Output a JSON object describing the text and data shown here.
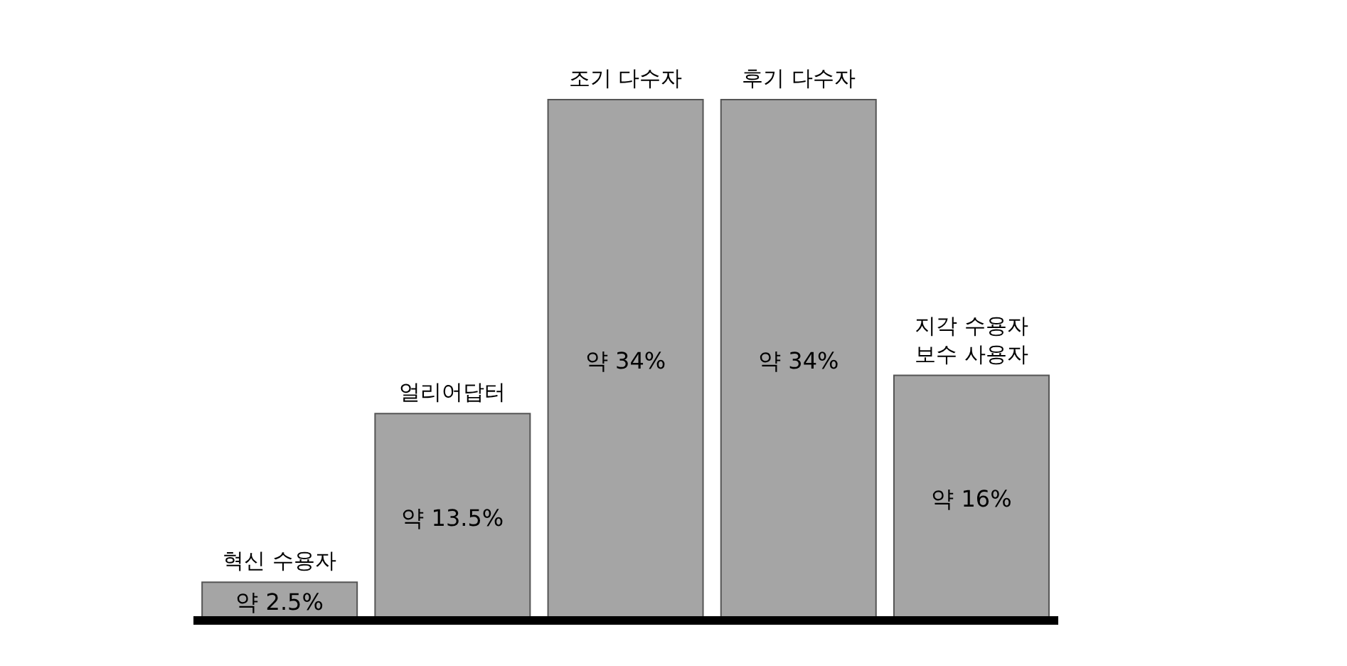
{
  "chart_data": {
    "type": "bar",
    "categories": [
      "혁신 수용자",
      "얼리어답터",
      "조기 다수자",
      "후기 다수자",
      "지각 수용자\n보수 사용자"
    ],
    "values": [
      2.5,
      13.5,
      34,
      34,
      16
    ],
    "value_labels": [
      "약 2.5%",
      "약 13.5%",
      "약 34%",
      "약 34%",
      "약 16%"
    ],
    "color": "#a5a5a5",
    "grid": false,
    "legend": false
  }
}
